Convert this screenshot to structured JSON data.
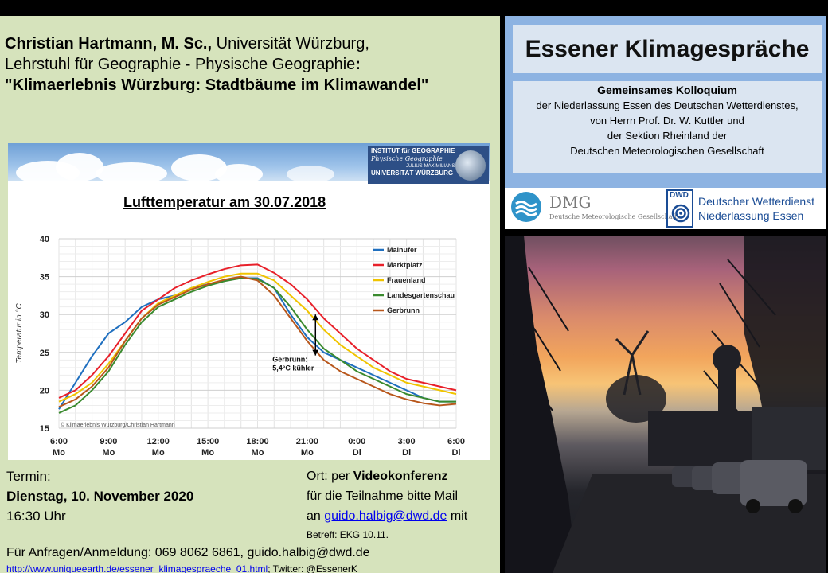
{
  "speaker": {
    "name": "Christian Hartmann, M. Sc.,",
    "affiliation": " Universität Würzburg,",
    "chair": "Lehrstuhl für Geographie - Physische Geographie",
    "colon": ":",
    "talk_title": "\"Klimaerlebnis Würzburg: Stadtbäume im Klimawandel\""
  },
  "slide": {
    "institute_line1": "INSTITUT für GEOGRAPHIE",
    "institute_line2": "Physische Geographie",
    "institute_line3": "JULIUS-MAXIMILIANS-",
    "institute_line4": "UNIVERSITÄT WÜRZBURG"
  },
  "chart_data": {
    "type": "line",
    "title": "Lufttemperatur am 30.07.2018",
    "ylabel": "Temperatur in °C",
    "ylim": [
      15,
      40
    ],
    "yticks": [
      15,
      20,
      25,
      30,
      35,
      40
    ],
    "xlim": [
      0,
      24
    ],
    "xticks": [
      {
        "x": 0,
        "time": "6:00",
        "day": "Mo"
      },
      {
        "x": 3,
        "time": "9:00",
        "day": "Mo"
      },
      {
        "x": 6,
        "time": "12:00",
        "day": "Mo"
      },
      {
        "x": 9,
        "time": "15:00",
        "day": "Mo"
      },
      {
        "x": 12,
        "time": "18:00",
        "day": "Mo"
      },
      {
        "x": 15,
        "time": "21:00",
        "day": "Mo"
      },
      {
        "x": 18,
        "time": "0:00",
        "day": "Di"
      },
      {
        "x": 21,
        "time": "3:00",
        "day": "Di"
      },
      {
        "x": 24,
        "time": "6:00",
        "day": "Di"
      }
    ],
    "grid": true,
    "legend_position": "top-right",
    "x": [
      0,
      1,
      2,
      3,
      4,
      5,
      6,
      7,
      8,
      9,
      10,
      11,
      12,
      13,
      14,
      15,
      16,
      17,
      18,
      19,
      20,
      21,
      22,
      23,
      24
    ],
    "series": [
      {
        "name": "Mainufer",
        "color": "#1f6fbf",
        "values": [
          17.5,
          21,
          24.5,
          27.5,
          29,
          31,
          32,
          32.5,
          33.5,
          34,
          34.5,
          34.8,
          34.8,
          33.5,
          30,
          27,
          25,
          24,
          23,
          22,
          21,
          20,
          19,
          18.5,
          18.5
        ]
      },
      {
        "name": "Marktplatz",
        "color": "#e8202a",
        "values": [
          19,
          20,
          22,
          24.5,
          27.5,
          30.5,
          32,
          33.5,
          34.5,
          35.3,
          36,
          36.5,
          36.6,
          35.5,
          34,
          32,
          29.5,
          27.5,
          25.5,
          24,
          22.5,
          21.5,
          21,
          20.5,
          20
        ]
      },
      {
        "name": "Frauenland",
        "color": "#f0c400",
        "values": [
          18.5,
          19.5,
          21,
          23.5,
          26.5,
          29.5,
          31.5,
          32.5,
          33.5,
          34.3,
          35,
          35.4,
          35.4,
          34.5,
          32.5,
          30.5,
          28,
          26,
          24.5,
          23,
          22,
          21,
          20.5,
          20,
          19.5
        ]
      },
      {
        "name": "Landesgartenschau",
        "color": "#3a8a2e",
        "values": [
          17,
          18,
          20,
          22.5,
          26,
          29,
          31,
          32,
          33,
          33.8,
          34.4,
          34.8,
          34.7,
          33.5,
          31,
          28,
          25.5,
          24,
          22.5,
          21.5,
          20.5,
          19.5,
          19,
          18.5,
          18.5
        ]
      },
      {
        "name": "Gerbrunn",
        "color": "#b8571c",
        "values": [
          17.8,
          18.8,
          20.5,
          23,
          26.5,
          29.5,
          31.3,
          32.3,
          33.3,
          34,
          34.6,
          35,
          34.5,
          32.5,
          29.5,
          26.5,
          24,
          22.5,
          21.5,
          20.5,
          19.5,
          18.8,
          18.3,
          18,
          18.2
        ]
      }
    ],
    "annotation": {
      "line1": "Gerbrunn:",
      "line2": "5,4°C kühler",
      "x": 15.5,
      "y_top": 30,
      "y_bottom": 24.6
    },
    "copyright": "© Klimaerlebnis Würzburg/Christian Hartmann"
  },
  "termin": {
    "label": "Termin:",
    "date": "Dienstag,  10. November 2020",
    "time": "16:30 Uhr"
  },
  "ort": {
    "prefix": "Ort: per ",
    "mode": "Videokonferenz",
    "line2": "für die Teilnahme bitte Mail",
    "line3_prefix": "an ",
    "email": "guido.halbig@dwd.de",
    "line3_suffix": " mit",
    "betreff": "Betreff: EKG 10.11."
  },
  "anfragen": "Für Anfragen/Anmeldung: 069 8062 6861, guido.halbig@dwd.de",
  "weblink": {
    "url": "http://www.uniqueearth.de/essener_klimagespraeche_01.html",
    "suffix": "; Twitter: @EssenerK"
  },
  "event": {
    "title": "Essener Klimagespräche",
    "heading": "Gemeinsames Kolloquium",
    "lines": [
      "der Niederlassung Essen des Deutschen Wetterdienstes,",
      "von Herrn Prof. Dr. W. Kuttler und",
      "der Sektion  Rheinland der",
      "Deutschen Meteorologischen Gesellschaft"
    ]
  },
  "logos": {
    "dmg": "DMG",
    "dmg_sub": "Deutsche Meteorologische Gesellschaft",
    "dwd_label": "DWD",
    "dwd_line1": "Deutscher Wetterdienst",
    "dwd_line2": "Niederlassung Essen"
  }
}
